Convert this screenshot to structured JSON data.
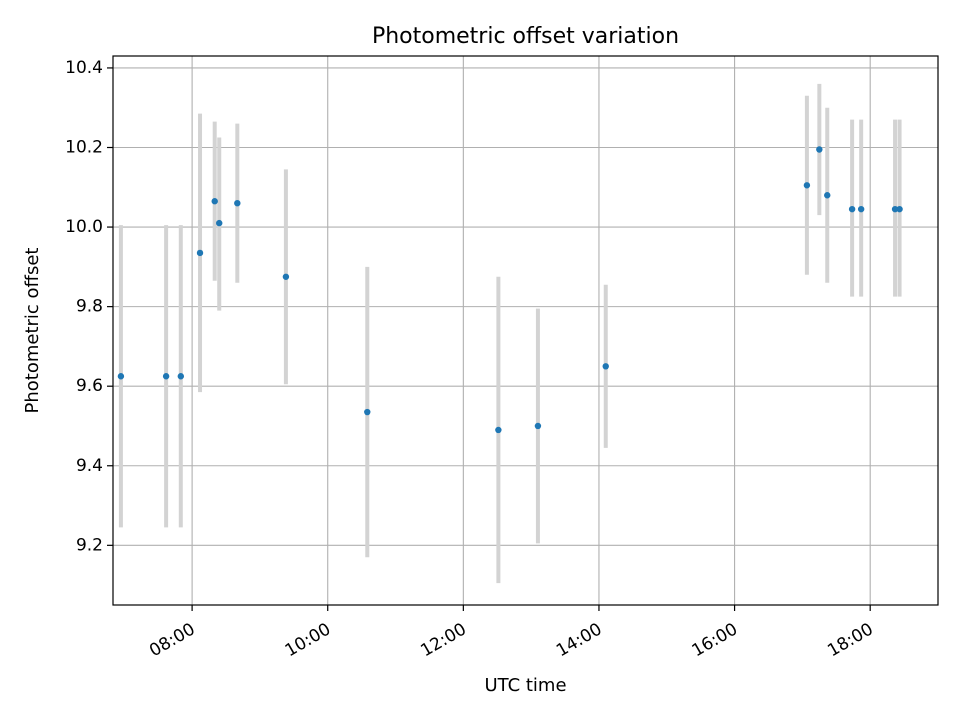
{
  "chart_data": {
    "type": "scatter",
    "title": "Photometric offset variation",
    "xlabel": "UTC time",
    "ylabel": "Photometric offset",
    "x_axis_type": "time",
    "xlim": [
      "06:50",
      "19:00"
    ],
    "ylim": [
      9.05,
      10.43
    ],
    "x_ticks": [
      "08:00",
      "10:00",
      "12:00",
      "14:00",
      "16:00",
      "18:00"
    ],
    "y_ticks": [
      "9.2",
      "9.4",
      "9.6",
      "9.8",
      "10.0",
      "10.2",
      "10.4"
    ],
    "grid": true,
    "legend": false,
    "colors": {
      "point": "#1f77b4",
      "errorbar": "#d3d3d3",
      "grid": "#b0b0b0",
      "axes": "#000000"
    },
    "points": [
      {
        "x": "06:57",
        "y": 9.625,
        "yerr_low": 9.245,
        "yerr_high": 10.005
      },
      {
        "x": "07:37",
        "y": 9.625,
        "yerr_low": 9.245,
        "yerr_high": 10.005
      },
      {
        "x": "07:50",
        "y": 9.625,
        "yerr_low": 9.245,
        "yerr_high": 10.005
      },
      {
        "x": "08:07",
        "y": 9.935,
        "yerr_low": 9.585,
        "yerr_high": 10.285
      },
      {
        "x": "08:20",
        "y": 10.065,
        "yerr_low": 9.865,
        "yerr_high": 10.265
      },
      {
        "x": "08:24",
        "y": 10.01,
        "yerr_low": 9.79,
        "yerr_high": 10.225
      },
      {
        "x": "08:40",
        "y": 10.06,
        "yerr_low": 9.86,
        "yerr_high": 10.26
      },
      {
        "x": "09:23",
        "y": 9.875,
        "yerr_low": 9.605,
        "yerr_high": 10.145
      },
      {
        "x": "10:35",
        "y": 9.535,
        "yerr_low": 9.17,
        "yerr_high": 9.9
      },
      {
        "x": "12:31",
        "y": 9.49,
        "yerr_low": 9.105,
        "yerr_high": 9.875
      },
      {
        "x": "13:06",
        "y": 9.5,
        "yerr_low": 9.205,
        "yerr_high": 9.795
      },
      {
        "x": "14:06",
        "y": 9.65,
        "yerr_low": 9.445,
        "yerr_high": 9.855
      },
      {
        "x": "17:04",
        "y": 10.105,
        "yerr_low": 9.88,
        "yerr_high": 10.33
      },
      {
        "x": "17:15",
        "y": 10.195,
        "yerr_low": 10.03,
        "yerr_high": 10.36
      },
      {
        "x": "17:22",
        "y": 10.08,
        "yerr_low": 9.86,
        "yerr_high": 10.3
      },
      {
        "x": "17:44",
        "y": 10.045,
        "yerr_low": 9.825,
        "yerr_high": 10.27
      },
      {
        "x": "17:52",
        "y": 10.045,
        "yerr_low": 9.825,
        "yerr_high": 10.27
      },
      {
        "x": "18:22",
        "y": 10.045,
        "yerr_low": 9.825,
        "yerr_high": 10.27
      },
      {
        "x": "18:26",
        "y": 10.045,
        "yerr_low": 9.825,
        "yerr_high": 10.27
      }
    ]
  }
}
